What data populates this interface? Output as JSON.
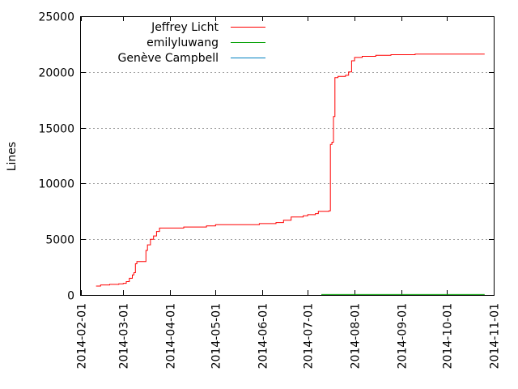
{
  "chart_data": {
    "type": "line",
    "title": "",
    "xlabel": "",
    "ylabel": "Lines",
    "x_axis": {
      "type": "date",
      "range": [
        "2014-02-01",
        "2014-11-01"
      ],
      "tick_labels": [
        "2014-02-01",
        "2014-03-01",
        "2014-04-01",
        "2014-05-01",
        "2014-06-01",
        "2014-07-01",
        "2014-08-01",
        "2014-09-01",
        "2014-10-01",
        "2014-11-01"
      ]
    },
    "y_axis": {
      "range": [
        0,
        25000
      ],
      "tick_labels": [
        "0",
        "5000",
        "10000",
        "15000",
        "20000",
        "25000"
      ],
      "grid": true
    },
    "legend": {
      "position": "top-left"
    },
    "series": [
      {
        "name": "Jeffrey Licht",
        "color": "#ff0000",
        "points": [
          [
            "2014-02-11",
            800
          ],
          [
            "2014-02-14",
            900
          ],
          [
            "2014-02-20",
            950
          ],
          [
            "2014-02-26",
            1000
          ],
          [
            "2014-03-01",
            1050
          ],
          [
            "2014-03-03",
            1200
          ],
          [
            "2014-03-05",
            1500
          ],
          [
            "2014-03-07",
            1800
          ],
          [
            "2014-03-08",
            2000
          ],
          [
            "2014-03-09",
            2800
          ],
          [
            "2014-03-10",
            3000
          ],
          [
            "2014-03-15",
            3000
          ],
          [
            "2014-03-16",
            4000
          ],
          [
            "2014-03-17",
            4500
          ],
          [
            "2014-03-19",
            5000
          ],
          [
            "2014-03-21",
            5300
          ],
          [
            "2014-03-23",
            5700
          ],
          [
            "2014-03-25",
            6000
          ],
          [
            "2014-04-10",
            6100
          ],
          [
            "2014-04-25",
            6200
          ],
          [
            "2014-05-01",
            6300
          ],
          [
            "2014-05-30",
            6400
          ],
          [
            "2014-06-10",
            6500
          ],
          [
            "2014-06-15",
            6700
          ],
          [
            "2014-06-20",
            7000
          ],
          [
            "2014-06-28",
            7100
          ],
          [
            "2014-07-01",
            7200
          ],
          [
            "2014-07-06",
            7300
          ],
          [
            "2014-07-08",
            7500
          ],
          [
            "2014-07-15",
            7550
          ],
          [
            "2014-07-16",
            13500
          ],
          [
            "2014-07-17",
            13700
          ],
          [
            "2014-07-18",
            16000
          ],
          [
            "2014-07-19",
            19500
          ],
          [
            "2014-07-21",
            19600
          ],
          [
            "2014-07-26",
            19700
          ],
          [
            "2014-07-28",
            20000
          ],
          [
            "2014-07-30",
            21000
          ],
          [
            "2014-08-01",
            21300
          ],
          [
            "2014-08-06",
            21400
          ],
          [
            "2014-08-15",
            21500
          ],
          [
            "2014-08-25",
            21550
          ],
          [
            "2014-09-10",
            21600
          ],
          [
            "2014-10-26",
            21600
          ]
        ]
      },
      {
        "name": "emilyluwang",
        "color": "#00a000",
        "points": [
          [
            "2014-07-10",
            40
          ],
          [
            "2014-10-26",
            40
          ]
        ]
      },
      {
        "name": "Genève Campbell",
        "color": "#0080c0",
        "points": []
      }
    ]
  }
}
